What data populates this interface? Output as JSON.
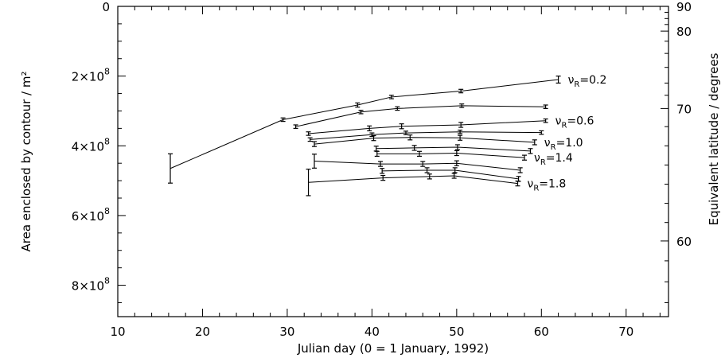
{
  "chart_data": {
    "type": "line",
    "xlabel": "Julian day (0 = 1 January, 1992)",
    "ylabel": "Area enclosed by contour / m²",
    "ylabel_right": "Equivalent latitude / degrees",
    "xlim": [
      10,
      75
    ],
    "ylim": [
      0,
      890000000.0
    ],
    "y_inverted": true,
    "x_ticks": [
      10,
      20,
      30,
      40,
      50,
      60,
      70
    ],
    "y_ticks": [
      {
        "value": 0,
        "mant": "0",
        "exp": ""
      },
      {
        "value": 200000000.0,
        "mant": "2×10",
        "exp": "8"
      },
      {
        "value": 400000000.0,
        "mant": "4×10",
        "exp": "8"
      },
      {
        "value": 600000000.0,
        "mant": "6×10",
        "exp": "8"
      },
      {
        "value": 800000000.0,
        "mant": "8×10",
        "exp": "8"
      }
    ],
    "right_ticks": [
      {
        "label": "90",
        "area": 0
      },
      {
        "label": "80",
        "area": 71000000.0
      },
      {
        "label": "70",
        "area": 293000000.0
      },
      {
        "label": "60",
        "area": 673000000.0
      }
    ],
    "series": [
      {
        "name": "νR=0.2",
        "label": {
          "greek": "ν",
          "sub": "R",
          "rest": "=0.2"
        },
        "points": [
          {
            "x": 16.2,
            "y": 465000000.0,
            "err": 42000000.0
          },
          {
            "x": 29.5,
            "y": 325000000.0,
            "err": 5000000.0
          },
          {
            "x": 38.3,
            "y": 283000000.0,
            "err": 6000000.0
          },
          {
            "x": 42.3,
            "y": 260000000.0,
            "err": 5000000.0
          },
          {
            "x": 50.5,
            "y": 243000000.0,
            "err": 5000000.0
          },
          {
            "x": 62,
            "y": 210000000.0,
            "err": 10000000.0
          }
        ]
      },
      {
        "name": "",
        "label": null,
        "points": [
          {
            "x": 31,
            "y": 345000000.0,
            "err": 5000000.0
          },
          {
            "x": 38.7,
            "y": 303000000.0,
            "err": 5000000.0
          },
          {
            "x": 43,
            "y": 293000000.0,
            "err": 5000000.0
          },
          {
            "x": 50.6,
            "y": 285000000.0,
            "err": 5000000.0
          },
          {
            "x": 60.5,
            "y": 288000000.0,
            "err": 5000000.0
          }
        ]
      },
      {
        "name": "νR=0.6",
        "label": {
          "greek": "ν",
          "sub": "R",
          "rest": "=0.6"
        },
        "points": [
          {
            "x": 32.5,
            "y": 365000000.0,
            "err": 5000000.0
          },
          {
            "x": 39.7,
            "y": 350000000.0,
            "err": 7000000.0
          },
          {
            "x": 43.5,
            "y": 344000000.0,
            "err": 7000000.0
          },
          {
            "x": 50.5,
            "y": 340000000.0,
            "err": 7000000.0
          },
          {
            "x": 60.5,
            "y": 328000000.0,
            "err": 5000000.0
          }
        ]
      },
      {
        "name": "",
        "label": null,
        "points": [
          {
            "x": 32.7,
            "y": 382000000.0,
            "err": 5000000.0
          },
          {
            "x": 40,
            "y": 368000000.0,
            "err": 5000000.0
          },
          {
            "x": 44,
            "y": 363000000.0,
            "err": 5000000.0
          },
          {
            "x": 50.4,
            "y": 360000000.0,
            "err": 5000000.0
          },
          {
            "x": 60,
            "y": 362000000.0,
            "err": 5000000.0
          }
        ]
      },
      {
        "name": "νR=1.0",
        "label": {
          "greek": "ν",
          "sub": "R",
          "rest": "=1.0"
        },
        "points": [
          {
            "x": 33.2,
            "y": 395000000.0,
            "err": 7000000.0
          },
          {
            "x": 40.2,
            "y": 378000000.0,
            "err": 7000000.0
          },
          {
            "x": 44.5,
            "y": 376000000.0,
            "err": 7000000.0
          },
          {
            "x": 50.4,
            "y": 377000000.0,
            "err": 7000000.0
          },
          {
            "x": 59.2,
            "y": 390000000.0,
            "err": 7000000.0
          }
        ]
      },
      {
        "name": "",
        "label": null,
        "points": [
          {
            "x": 40.5,
            "y": 408000000.0,
            "err": 7000000.0
          },
          {
            "x": 45,
            "y": 406000000.0,
            "err": 7000000.0
          },
          {
            "x": 50.1,
            "y": 404000000.0,
            "err": 7000000.0
          },
          {
            "x": 58.7,
            "y": 415000000.0,
            "err": 7000000.0
          }
        ]
      },
      {
        "name": "νR=1.4",
        "label": {
          "greek": "ν",
          "sub": "R",
          "rest": "=1.4"
        },
        "points": [
          {
            "x": 40.6,
            "y": 423000000.0,
            "err": 7000000.0
          },
          {
            "x": 45.6,
            "y": 423000000.0,
            "err": 7000000.0
          },
          {
            "x": 50,
            "y": 421000000.0,
            "err": 7000000.0
          },
          {
            "x": 58,
            "y": 434000000.0,
            "err": 7000000.0
          }
        ]
      },
      {
        "name": "",
        "label": null,
        "points": [
          {
            "x": 33.2,
            "y": 444000000.0,
            "err": 20000000.0
          },
          {
            "x": 41,
            "y": 452000000.0,
            "err": 7000000.0
          },
          {
            "x": 46,
            "y": 452000000.0,
            "err": 7000000.0
          },
          {
            "x": 50,
            "y": 450000000.0,
            "err": 7000000.0
          },
          {
            "x": 57.5,
            "y": 470000000.0,
            "err": 7000000.0
          }
        ]
      },
      {
        "name": "",
        "label": null,
        "points": [
          {
            "x": 41.2,
            "y": 472000000.0,
            "err": 7000000.0
          },
          {
            "x": 46.5,
            "y": 470000000.0,
            "err": 7000000.0
          },
          {
            "x": 49.8,
            "y": 470000000.0,
            "err": 7000000.0
          },
          {
            "x": 57.3,
            "y": 495000000.0,
            "err": 7000000.0
          }
        ]
      },
      {
        "name": "νR=1.8",
        "label": {
          "greek": "ν",
          "sub": "R",
          "rest": "=1.8"
        },
        "points": [
          {
            "x": 32.5,
            "y": 505000000.0,
            "err": 38000000.0
          },
          {
            "x": 41.3,
            "y": 492000000.0,
            "err": 7000000.0
          },
          {
            "x": 46.8,
            "y": 488000000.0,
            "err": 7000000.0
          },
          {
            "x": 49.7,
            "y": 486000000.0,
            "err": 7000000.0
          },
          {
            "x": 57.2,
            "y": 508000000.0,
            "err": 7000000.0
          }
        ]
      }
    ],
    "label_anchor_series": [
      0,
      2,
      4,
      6,
      9
    ],
    "grid": false
  }
}
